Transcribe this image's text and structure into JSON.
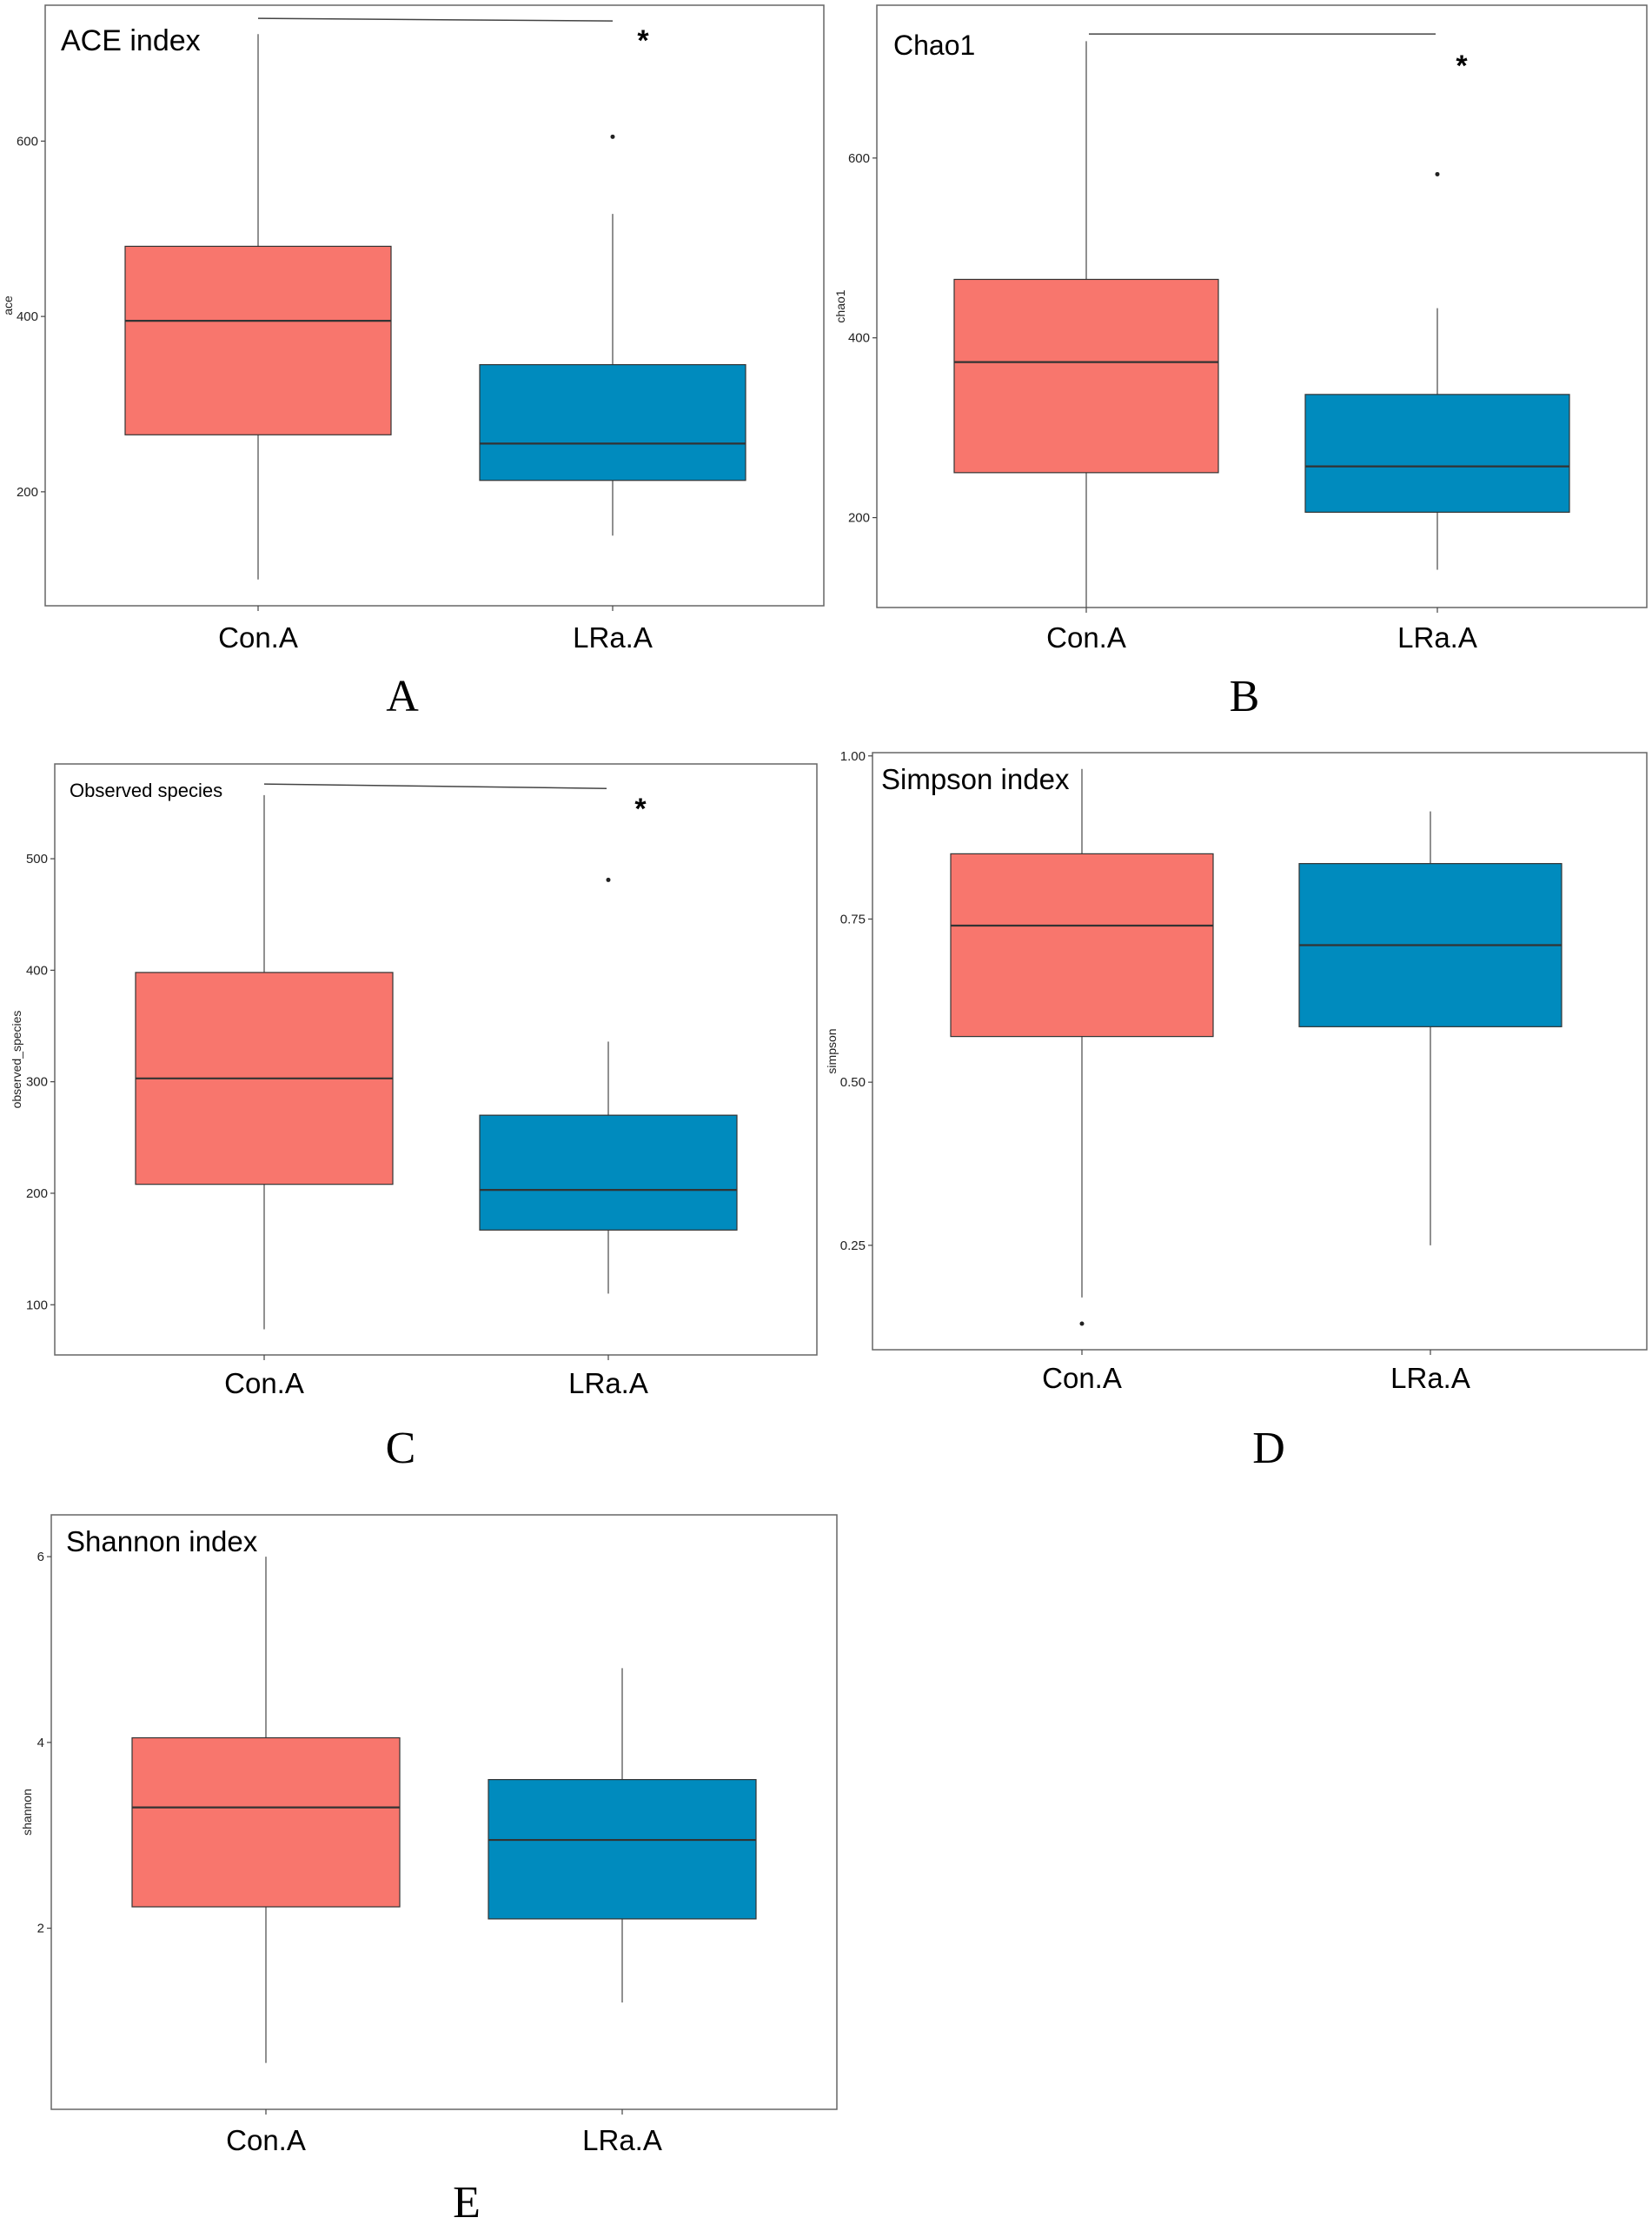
{
  "chart_data": [
    {
      "type": "box",
      "panel": "A",
      "title": "ACE index",
      "ylabel": "ace",
      "ylim": [
        70,
        755
      ],
      "yticks": [
        200,
        400,
        600
      ],
      "categories": [
        "Con.A",
        "LRa.A"
      ],
      "colors": [
        "#F8766D",
        "#008BBE"
      ],
      "boxes": [
        {
          "name": "Con.A",
          "whisker_low": 100,
          "q1": 265,
          "median": 395,
          "q3": 480,
          "whisker_high": 722,
          "outliers": []
        },
        {
          "name": "LRa.A",
          "whisker_low": 150,
          "q1": 213,
          "median": 255,
          "q3": 345,
          "whisker_high": 517,
          "outliers": [
            605
          ]
        }
      ],
      "significance": {
        "label": "*",
        "y_start": 740,
        "y_end": 737
      }
    },
    {
      "type": "box",
      "panel": "B",
      "title": "Chao1",
      "ylabel": "chao1",
      "ylim": [
        100,
        770
      ],
      "yticks": [
        200,
        400,
        600
      ],
      "categories": [
        "Con.A",
        "LRa.A"
      ],
      "colors": [
        "#F8766D",
        "#008BBE"
      ],
      "boxes": [
        {
          "name": "Con.A",
          "whisker_low": 100,
          "q1": 250,
          "median": 373,
          "q3": 465,
          "whisker_high": 730,
          "outliers": []
        },
        {
          "name": "LRa.A",
          "whisker_low": 142,
          "q1": 206,
          "median": 257,
          "q3": 337,
          "whisker_high": 433,
          "outliers": [
            582
          ]
        }
      ],
      "significance": {
        "label": "*",
        "y_start": 738,
        "y_end": 738
      }
    },
    {
      "type": "box",
      "panel": "C",
      "title": "Observed species",
      "ylabel": "observed_species",
      "ylim": [
        55,
        585
      ],
      "yticks": [
        100,
        200,
        300,
        400,
        500
      ],
      "categories": [
        "Con.A",
        "LRa.A"
      ],
      "colors": [
        "#F8766D",
        "#008BBE"
      ],
      "boxes": [
        {
          "name": "Con.A",
          "whisker_low": 78,
          "q1": 208,
          "median": 303,
          "q3": 398,
          "whisker_high": 557,
          "outliers": []
        },
        {
          "name": "LRa.A",
          "whisker_low": 110,
          "q1": 167,
          "median": 203,
          "q3": 270,
          "whisker_high": 336,
          "outliers": [
            481
          ]
        }
      ],
      "significance": {
        "label": "*",
        "y_start": 567,
        "y_end": 563
      }
    },
    {
      "type": "box",
      "panel": "D",
      "title": "Simpson index",
      "ylabel": "simpson",
      "ylim": [
        0.09,
        1.005
      ],
      "yticks": [
        0.25,
        0.5,
        0.75,
        1.0
      ],
      "ytick_labels": [
        "0.25",
        "0.50",
        "0.75",
        "1.00"
      ],
      "categories": [
        "Con.A",
        "LRa.A"
      ],
      "colors": [
        "#F8766D",
        "#008BBE"
      ],
      "boxes": [
        {
          "name": "Con.A",
          "whisker_low": 0.17,
          "q1": 0.57,
          "median": 0.74,
          "q3": 0.85,
          "whisker_high": 0.98,
          "outliers": [
            0.13
          ]
        },
        {
          "name": "LRa.A",
          "whisker_low": 0.25,
          "q1": 0.585,
          "median": 0.71,
          "q3": 0.835,
          "whisker_high": 0.915,
          "outliers": []
        }
      ]
    },
    {
      "type": "box",
      "panel": "E",
      "title": "Shannon index",
      "ylabel": "shannon",
      "ylim": [
        0.05,
        6.45
      ],
      "yticks": [
        2,
        4,
        6
      ],
      "categories": [
        "Con.A",
        "LRa.A"
      ],
      "colors": [
        "#F8766D",
        "#008BBE"
      ],
      "boxes": [
        {
          "name": "Con.A",
          "whisker_low": 0.55,
          "q1": 2.23,
          "median": 3.3,
          "q3": 4.05,
          "whisker_high": 6.0,
          "outliers": []
        },
        {
          "name": "LRa.A",
          "whisker_low": 1.2,
          "q1": 2.1,
          "median": 2.95,
          "q3": 3.6,
          "whisker_high": 4.8,
          "outliers": []
        }
      ]
    }
  ]
}
